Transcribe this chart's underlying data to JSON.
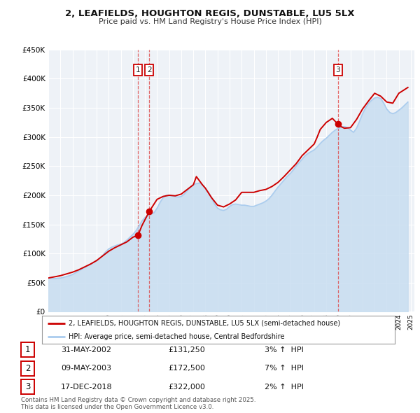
{
  "title": "2, LEAFIELDS, HOUGHTON REGIS, DUNSTABLE, LU5 5LX",
  "subtitle": "Price paid vs. HM Land Registry's House Price Index (HPI)",
  "legend_label_red": "2, LEAFIELDS, HOUGHTON REGIS, DUNSTABLE, LU5 5LX (semi-detached house)",
  "legend_label_blue": "HPI: Average price, semi-detached house, Central Bedfordshire",
  "footnote": "Contains HM Land Registry data © Crown copyright and database right 2025.\nThis data is licensed under the Open Government Licence v3.0.",
  "transactions": [
    {
      "num": "1",
      "date": "31-MAY-2002",
      "price": 131250,
      "price_str": "£131,250",
      "pct": "3%",
      "dir": "↑",
      "year": 2002.42
    },
    {
      "num": "2",
      "date": "09-MAY-2003",
      "price": 172500,
      "price_str": "£172,500",
      "pct": "7%",
      "dir": "↑",
      "year": 2003.36
    },
    {
      "num": "3",
      "date": "17-DEC-2018",
      "price": 322000,
      "price_str": "£322,000",
      "pct": "2%",
      "dir": "↑",
      "year": 2018.96
    }
  ],
  "red_color": "#cc0000",
  "blue_color": "#aaccee",
  "blue_fill_color": "#c8ddf0",
  "vline_color": "#dd4444",
  "background_color": "#ffffff",
  "plot_bg_color": "#eef2f7",
  "grid_color": "#ffffff",
  "ylim": [
    0,
    450000
  ],
  "yticks": [
    0,
    50000,
    100000,
    150000,
    200000,
    250000,
    300000,
    350000,
    400000,
    450000
  ],
  "xlim": [
    1995,
    2025.3
  ],
  "hpi_years": [
    1995.0,
    1995.25,
    1995.5,
    1995.75,
    1996.0,
    1996.25,
    1996.5,
    1996.75,
    1997.0,
    1997.25,
    1997.5,
    1997.75,
    1998.0,
    1998.25,
    1998.5,
    1998.75,
    1999.0,
    1999.25,
    1999.5,
    1999.75,
    2000.0,
    2000.25,
    2000.5,
    2000.75,
    2001.0,
    2001.25,
    2001.5,
    2001.75,
    2002.0,
    2002.25,
    2002.5,
    2002.75,
    2003.0,
    2003.25,
    2003.5,
    2003.75,
    2004.0,
    2004.25,
    2004.5,
    2004.75,
    2005.0,
    2005.25,
    2005.5,
    2005.75,
    2006.0,
    2006.25,
    2006.5,
    2006.75,
    2007.0,
    2007.25,
    2007.5,
    2007.75,
    2008.0,
    2008.25,
    2008.5,
    2008.75,
    2009.0,
    2009.25,
    2009.5,
    2009.75,
    2010.0,
    2010.25,
    2010.5,
    2010.75,
    2011.0,
    2011.25,
    2011.5,
    2011.75,
    2012.0,
    2012.25,
    2012.5,
    2012.75,
    2013.0,
    2013.25,
    2013.5,
    2013.75,
    2014.0,
    2014.25,
    2014.5,
    2014.75,
    2015.0,
    2015.25,
    2015.5,
    2015.75,
    2016.0,
    2016.25,
    2016.5,
    2016.75,
    2017.0,
    2017.25,
    2017.5,
    2017.75,
    2018.0,
    2018.25,
    2018.5,
    2018.75,
    2019.0,
    2019.25,
    2019.5,
    2019.75,
    2020.0,
    2020.25,
    2020.5,
    2020.75,
    2021.0,
    2021.25,
    2021.5,
    2021.75,
    2022.0,
    2022.25,
    2022.5,
    2022.75,
    2023.0,
    2023.25,
    2023.5,
    2023.75,
    2024.0,
    2024.25,
    2024.5,
    2024.75
  ],
  "hpi_vals": [
    58000,
    57500,
    57000,
    57500,
    58000,
    59000,
    60500,
    62000,
    64000,
    67000,
    70000,
    73000,
    76000,
    79000,
    82000,
    85000,
    88000,
    92000,
    97000,
    103000,
    108000,
    111000,
    113000,
    115000,
    116000,
    119000,
    123000,
    128000,
    133000,
    139000,
    147000,
    156000,
    162000,
    165000,
    168000,
    170000,
    178000,
    188000,
    196000,
    200000,
    200000,
    199000,
    198000,
    197000,
    198000,
    202000,
    208000,
    214000,
    218000,
    220000,
    221000,
    218000,
    212000,
    205000,
    196000,
    185000,
    178000,
    175000,
    174000,
    176000,
    181000,
    184000,
    185000,
    184000,
    183000,
    183000,
    182000,
    181000,
    181000,
    183000,
    185000,
    187000,
    190000,
    194000,
    200000,
    207000,
    214000,
    220000,
    226000,
    232000,
    237000,
    243000,
    250000,
    256000,
    262000,
    268000,
    272000,
    275000,
    278000,
    283000,
    289000,
    294000,
    298000,
    303000,
    308000,
    312000,
    315000,
    317000,
    318000,
    316000,
    312000,
    308000,
    315000,
    327000,
    340000,
    350000,
    358000,
    363000,
    367000,
    368000,
    366000,
    358000,
    348000,
    342000,
    340000,
    342000,
    346000,
    350000,
    355000,
    360000
  ],
  "price_years": [
    1995.0,
    1995.5,
    1996.0,
    1996.5,
    1997.0,
    1997.5,
    1998.0,
    1998.5,
    1999.0,
    1999.5,
    2000.0,
    2000.5,
    2001.0,
    2001.5,
    2002.0,
    2002.42,
    2002.75,
    2003.36,
    2003.75,
    2004.0,
    2004.5,
    2005.0,
    2005.5,
    2006.0,
    2006.5,
    2007.0,
    2007.25,
    2007.75,
    2008.0,
    2008.5,
    2009.0,
    2009.5,
    2010.0,
    2010.5,
    2011.0,
    2011.5,
    2012.0,
    2012.5,
    2013.0,
    2013.5,
    2014.0,
    2014.5,
    2015.0,
    2015.5,
    2016.0,
    2016.5,
    2017.0,
    2017.25,
    2017.5,
    2018.0,
    2018.5,
    2018.96,
    2019.0,
    2019.5,
    2020.0,
    2020.5,
    2021.0,
    2021.5,
    2022.0,
    2022.5,
    2023.0,
    2023.5,
    2024.0,
    2024.75
  ],
  "price_vals": [
    58000,
    60000,
    62000,
    65000,
    68000,
    72000,
    77000,
    82000,
    88000,
    96000,
    104000,
    110000,
    115000,
    120000,
    128000,
    131250,
    148000,
    172500,
    185000,
    193000,
    198000,
    200000,
    199000,
    202000,
    210000,
    218000,
    232000,
    218000,
    212000,
    196000,
    183000,
    180000,
    185000,
    192000,
    205000,
    205000,
    205000,
    208000,
    210000,
    215000,
    222000,
    232000,
    243000,
    254000,
    268000,
    278000,
    288000,
    300000,
    313000,
    325000,
    332000,
    322000,
    320000,
    315000,
    316000,
    330000,
    348000,
    362000,
    375000,
    370000,
    360000,
    358000,
    375000,
    385000
  ]
}
